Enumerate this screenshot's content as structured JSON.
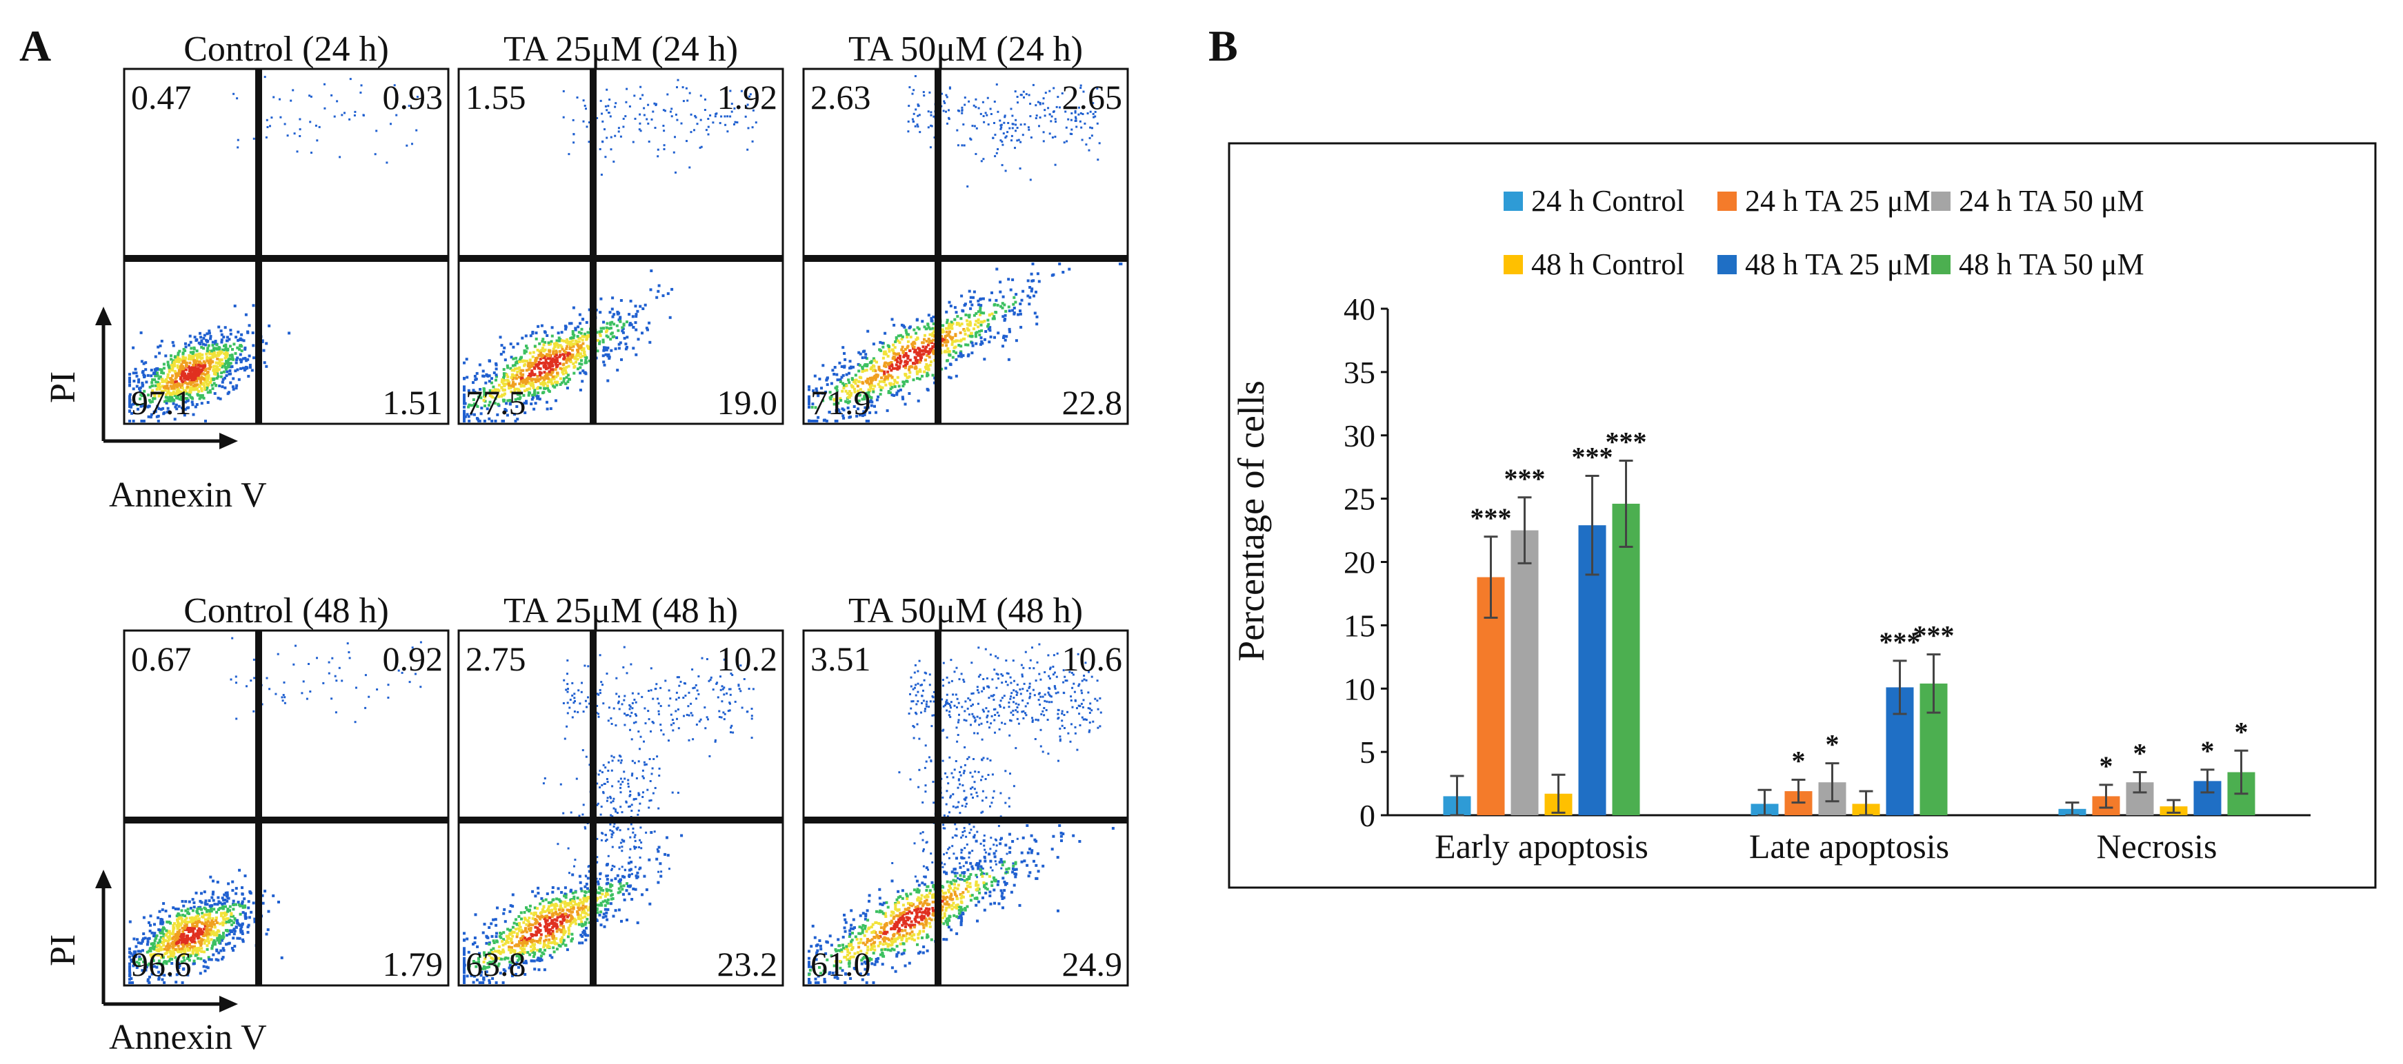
{
  "panel_a": {
    "label": "A",
    "y_axis_label": "PI",
    "x_axis_label": "Annexin V",
    "plots": [
      {
        "title": "Control (24 h)",
        "q_ul": "0.47",
        "q_ur": "0.93",
        "q_ll": "97.1",
        "q_lr": "1.51"
      },
      {
        "title": "TA 25μM (24 h)",
        "q_ul": "1.55",
        "q_ur": "1.92",
        "q_ll": "77.5",
        "q_lr": "19.0"
      },
      {
        "title": "TA 50μM (24 h)",
        "q_ul": "2.63",
        "q_ur": "2.65",
        "q_ll": "71.9",
        "q_lr": "22.8"
      },
      {
        "title": "Control (48 h)",
        "q_ul": "0.67",
        "q_ur": "0.92",
        "q_ll": "96.6",
        "q_lr": "1.79"
      },
      {
        "title": "TA 25μM (48 h)",
        "q_ul": "2.75",
        "q_ur": "10.2",
        "q_ll": "63.8",
        "q_lr": "23.2"
      },
      {
        "title": "TA 50μM (48 h)",
        "q_ul": "3.51",
        "q_ur": "10.6",
        "q_ll": "61.0",
        "q_lr": "24.9"
      }
    ]
  },
  "panel_b": {
    "label": "B"
  },
  "chart_data": {
    "type": "bar",
    "title": "",
    "xlabel": "",
    "ylabel": "Percentage of cells",
    "ylim": [
      0,
      40
    ],
    "yticks": [
      0,
      5,
      10,
      15,
      20,
      25,
      30,
      35,
      40
    ],
    "categories": [
      "Early apoptosis",
      "Late apoptosis",
      "Necrosis"
    ],
    "legend_position": "top",
    "series": [
      {
        "name": "24 h Control",
        "color": "#2e9bd6",
        "values": [
          1.5,
          0.9,
          0.5
        ],
        "errors": [
          1.6,
          1.1,
          0.5
        ],
        "sig": [
          "",
          "",
          ""
        ]
      },
      {
        "name": "24 h TA 25 μM",
        "color": "#f47b2a",
        "values": [
          18.8,
          1.9,
          1.5
        ],
        "errors": [
          3.2,
          0.9,
          0.9
        ],
        "sig": [
          "***",
          "*",
          "*"
        ]
      },
      {
        "name": "24 h TA 50 μM",
        "color": "#a5a5a5",
        "values": [
          22.5,
          2.6,
          2.6
        ],
        "errors": [
          2.6,
          1.5,
          0.8
        ],
        "sig": [
          "***",
          "*",
          "*"
        ]
      },
      {
        "name": "48 h Control",
        "color": "#ffc000",
        "values": [
          1.7,
          0.9,
          0.7
        ],
        "errors": [
          1.5,
          1.0,
          0.5
        ],
        "sig": [
          "",
          "",
          ""
        ]
      },
      {
        "name": "48 h TA 25 μM",
        "color": "#1f6fc5",
        "values": [
          22.9,
          10.1,
          2.7
        ],
        "errors": [
          3.9,
          2.1,
          0.9
        ],
        "sig": [
          "***",
          "***",
          "*"
        ]
      },
      {
        "name": "48 h TA 50 μM",
        "color": "#4caf50",
        "values": [
          24.6,
          10.4,
          3.4
        ],
        "errors": [
          3.4,
          2.3,
          1.7
        ],
        "sig": [
          "***",
          "***",
          "*"
        ]
      }
    ]
  }
}
